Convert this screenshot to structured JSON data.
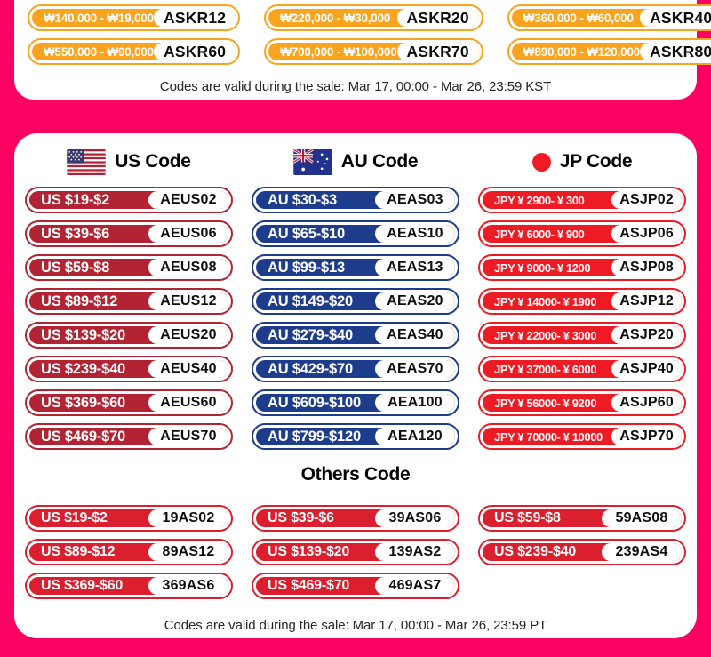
{
  "colors": {
    "page_background": "#FB0262",
    "krw_orange": "#F8A41E",
    "us_red": "#B22433",
    "au_blue": "#1E3C8C",
    "jp_red": "#ED1B24",
    "others_red": "#DB1F2E"
  },
  "card1": {
    "coupons": [
      {
        "amount": "₩140,000 - ₩19,000",
        "code": "ASKR12"
      },
      {
        "amount": "₩220,000 - ₩30,000",
        "code": "ASKR20"
      },
      {
        "amount": "₩360,000 - ₩60,000",
        "code": "ASKR40"
      },
      {
        "amount": "₩550,000 - ₩90,000",
        "code": "ASKR60"
      },
      {
        "amount": "₩700,000 - ₩100,000",
        "code": "ASKR70"
      },
      {
        "amount": "₩890,000 - ₩120,000",
        "code": "ASKR80"
      }
    ],
    "validity": "Codes are valid during the sale: Mar 17, 00:00 - Mar 26, 23:59 KST"
  },
  "card2": {
    "sections": [
      {
        "id": "us",
        "title": "US Code",
        "icon": "us-flag",
        "color": "#B22433",
        "coupons": [
          {
            "amount": "US $19-$2",
            "code": "AEUS02"
          },
          {
            "amount": "US $39-$6",
            "code": "AEUS06"
          },
          {
            "amount": "US $59-$8",
            "code": "AEUS08"
          },
          {
            "amount": "US $89-$12",
            "code": "AEUS12"
          },
          {
            "amount": "US $139-$20",
            "code": "AEUS20"
          },
          {
            "amount": "US $239-$40",
            "code": "AEUS40"
          },
          {
            "amount": "US $369-$60",
            "code": "AEUS60"
          },
          {
            "amount": "US $469-$70",
            "code": "AEUS70"
          }
        ]
      },
      {
        "id": "au",
        "title": "AU Code",
        "icon": "au-flag",
        "color": "#1E3C8C",
        "coupons": [
          {
            "amount": "AU $30-$3",
            "code": "AEAS03"
          },
          {
            "amount": "AU $65-$10",
            "code": "AEAS10"
          },
          {
            "amount": "AU $99-$13",
            "code": "AEAS13"
          },
          {
            "amount": "AU $149-$20",
            "code": "AEAS20"
          },
          {
            "amount": "AU $279-$40",
            "code": "AEAS40"
          },
          {
            "amount": "AU $429-$70",
            "code": "AEAS70"
          },
          {
            "amount": "AU $609-$100",
            "code": "AEA100"
          },
          {
            "amount": "AU $799-$120",
            "code": "AEA120"
          }
        ]
      },
      {
        "id": "jp",
        "title": "JP Code",
        "icon": "jp-circle",
        "color": "#ED1B24",
        "coupons": [
          {
            "amount": "JPY ¥ 2900- ¥ 300",
            "code": "ASJP02"
          },
          {
            "amount": "JPY ¥ 6000- ¥ 900",
            "code": "ASJP06"
          },
          {
            "amount": "JPY ¥ 9000- ¥ 1200",
            "code": "ASJP08"
          },
          {
            "amount": "JPY ¥ 14000- ¥ 1900",
            "code": "ASJP12"
          },
          {
            "amount": "JPY ¥ 22000- ¥ 3000",
            "code": "ASJP20"
          },
          {
            "amount": "JPY ¥ 37000- ¥ 6000",
            "code": "ASJP40"
          },
          {
            "amount": "JPY ¥ 56000- ¥ 9200",
            "code": "ASJP60"
          },
          {
            "amount": "JPY ¥ 70000- ¥ 10000",
            "code": "ASJP70"
          }
        ]
      }
    ],
    "others": {
      "title": "Others Code",
      "color": "#DB1F2E",
      "coupons": [
        {
          "amount": "US $19-$2",
          "code": "19AS02"
        },
        {
          "amount": "US $39-$6",
          "code": "39AS06"
        },
        {
          "amount": "US $59-$8",
          "code": "59AS08"
        },
        {
          "amount": "US $89-$12",
          "code": "89AS12"
        },
        {
          "amount": "US $139-$20",
          "code": "139AS2"
        },
        {
          "amount": "US $239-$40",
          "code": "239AS4"
        },
        {
          "amount": "US $369-$60",
          "code": "369AS6"
        },
        {
          "amount": "US $469-$70",
          "code": "469AS7"
        }
      ]
    },
    "validity": "Codes are valid during the sale: Mar 17, 00:00 - Mar 26, 23:59 PT"
  }
}
